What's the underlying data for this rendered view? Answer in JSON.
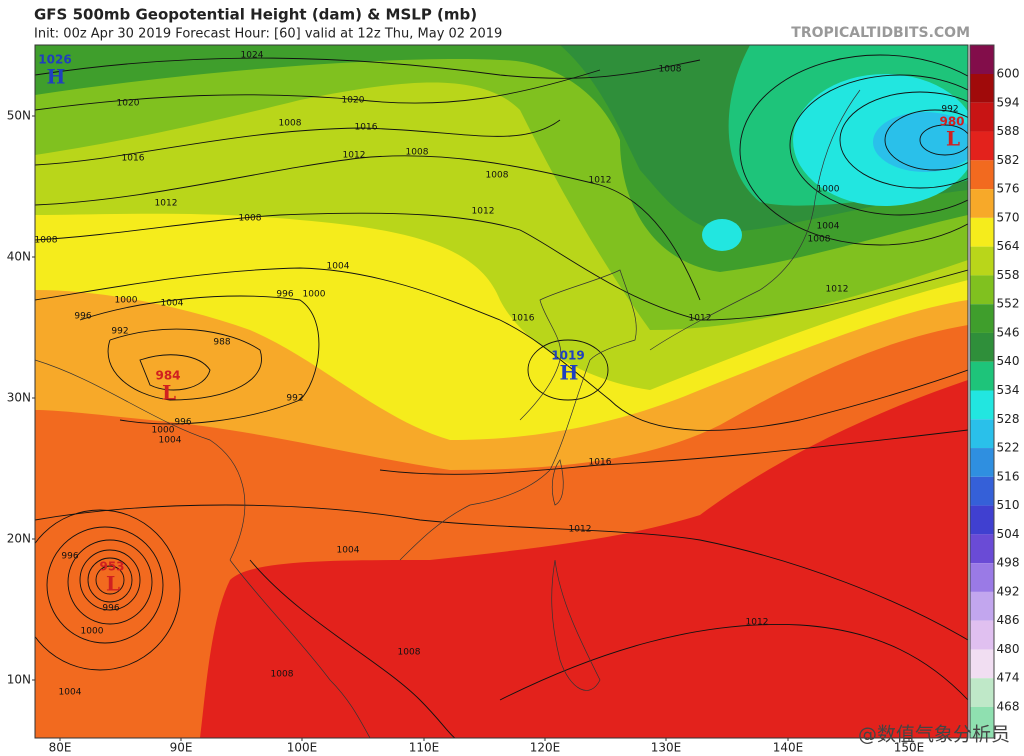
{
  "header": {
    "title": "GFS 500mb Geopotential Height (dam) & MSLP (mb)",
    "subtitle": "Init: 00z Apr 30 2019   Forecast Hour: [60]   valid at 12z Thu, May 02 2019",
    "credit": "TROPICALTIDBITS.COM"
  },
  "axes": {
    "lat": [
      "50N",
      "40N",
      "30N",
      "20N",
      "10N"
    ],
    "lon": [
      "80E",
      "90E",
      "100E",
      "110E",
      "120E",
      "130E",
      "140E",
      "150E"
    ]
  },
  "centers": [
    {
      "symbol": "H",
      "value": 1026,
      "color": "#1f3fbf"
    },
    {
      "symbol": "L",
      "value": 984,
      "color": "#d02020"
    },
    {
      "symbol": "H",
      "value": 1019,
      "color": "#1f3fbf"
    },
    {
      "symbol": "L",
      "value": 980,
      "color": "#d02020"
    },
    {
      "symbol": "L",
      "value": 953,
      "color": "#d02020"
    }
  ],
  "contour_labels": [
    1024,
    1020,
    1020,
    1016,
    1016,
    1012,
    1008,
    1008,
    1008,
    1008,
    1012,
    1008,
    1008,
    1012,
    1012,
    1004,
    996,
    1000,
    1000,
    1004,
    996,
    992,
    988,
    992,
    1016,
    1016,
    1012,
    1012,
    1012,
    1008,
    1004,
    1000,
    992,
    996,
    1000,
    1004,
    996,
    996,
    1000,
    1004,
    1008,
    1008,
    1004,
    1012
  ],
  "colorbar": {
    "labels": [
      600,
      594,
      588,
      582,
      576,
      570,
      564,
      558,
      552,
      546,
      540,
      534,
      528,
      522,
      516,
      510,
      504,
      498,
      492,
      486,
      480,
      474,
      468
    ],
    "colors": [
      "#820d4a",
      "#a00a0a",
      "#c81414",
      "#e3221c",
      "#f26a1f",
      "#f7a929",
      "#f5ec1c",
      "#b9d61a",
      "#80c11f",
      "#3f9e2c",
      "#2f8f3a",
      "#1ec47a",
      "#22e6e0",
      "#2ac0ea",
      "#2f8fe0",
      "#3560d8",
      "#4040d0",
      "#6a4bd6",
      "#9a7ae6",
      "#c2a6ee",
      "#e0c0f0",
      "#f1def2",
      "#bfe8c8",
      "#8fe0b0"
    ]
  },
  "footer": {
    "watermark": "@数值气象分析员"
  }
}
